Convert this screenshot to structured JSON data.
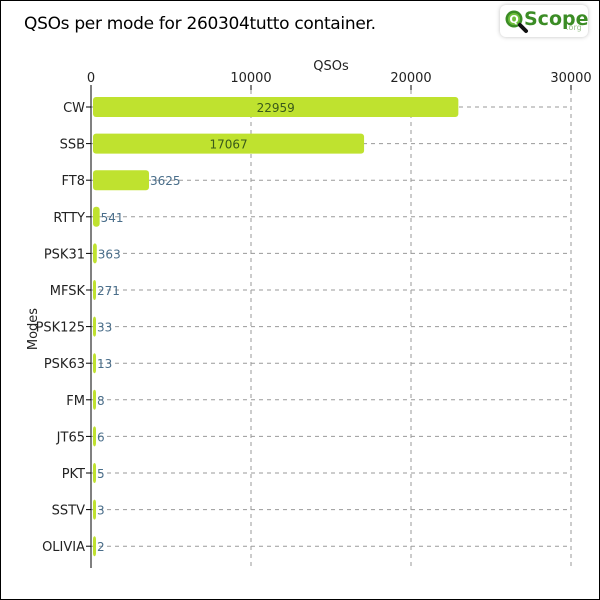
{
  "title": "QSOs per mode for 260304tutto container.",
  "logo": {
    "text": "Scope",
    "suffix": ".org",
    "q_letter": "Q"
  },
  "colors": {
    "bar": "#bfe22f",
    "label_inside": "#3a5a1a",
    "label_outside": "#4a6e8a",
    "grid": "#9a9a9a"
  },
  "chart_data": {
    "type": "bar",
    "orientation": "horizontal",
    "xlabel": "QSOs",
    "ylabel": "Modes",
    "xlim": [
      0,
      30000
    ],
    "xticks": [
      0,
      10000,
      20000,
      30000
    ],
    "xtick_labels": [
      "0",
      "10000",
      "20000",
      "30000"
    ],
    "grid": true,
    "categories": [
      "CW",
      "SSB",
      "FT8",
      "RTTY",
      "PSK31",
      "MFSK",
      "PSK125",
      "PSK63",
      "FM",
      "JT65",
      "PKT",
      "SSTV",
      "OLIVIA"
    ],
    "values": [
      22959,
      17067,
      3625,
      541,
      363,
      271,
      33,
      13,
      8,
      6,
      5,
      3,
      2
    ],
    "value_labels": [
      "22959",
      "17067",
      "3625",
      "541",
      "363",
      "271",
      "33",
      "13",
      "8",
      "6",
      "5",
      "3",
      "2"
    ]
  }
}
